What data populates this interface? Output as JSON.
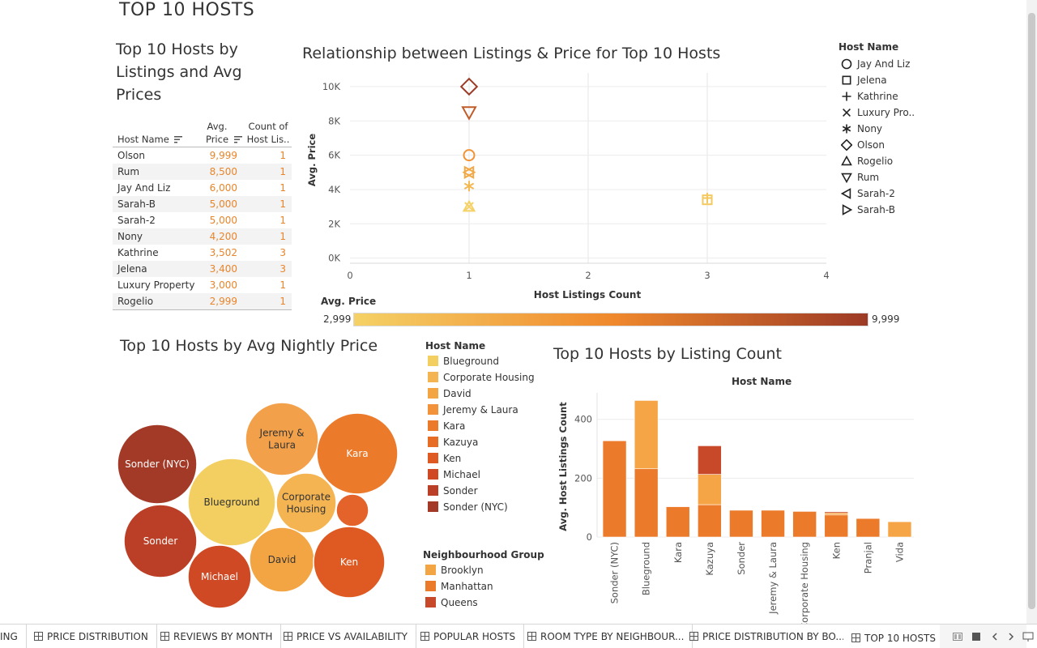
{
  "dashboard": {
    "title": "TOP 10 HOSTS"
  },
  "table_sheet": {
    "title_lines": [
      "Top 10 Hosts by",
      "Listings and Avg",
      "Prices"
    ],
    "headers": {
      "host_name": "Host Name",
      "avg_price_1": "Avg.",
      "avg_price_2": "Price",
      "count_1": "Count of",
      "count_2": "Host Lis.."
    },
    "rows": [
      {
        "name": "Olson",
        "price": "9,999",
        "count": "1"
      },
      {
        "name": "Rum",
        "price": "8,500",
        "count": "1"
      },
      {
        "name": "Jay And Liz",
        "price": "6,000",
        "count": "1"
      },
      {
        "name": "Sarah-B",
        "price": "5,000",
        "count": "1"
      },
      {
        "name": "Sarah-2",
        "price": "5,000",
        "count": "1"
      },
      {
        "name": "Nony",
        "price": "4,200",
        "count": "1"
      },
      {
        "name": "Kathrine",
        "price": "3,502",
        "count": "3"
      },
      {
        "name": "Jelena",
        "price": "3,400",
        "count": "3"
      },
      {
        "name": "Luxury Property",
        "price": "3,000",
        "count": "1"
      },
      {
        "name": "Rogelio",
        "price": "2,999",
        "count": "1"
      }
    ]
  },
  "shape_legend": {
    "title": "Host Name",
    "items": [
      {
        "label": "Jay And Liz",
        "shape": "circle"
      },
      {
        "label": "Jelena",
        "shape": "square"
      },
      {
        "label": "Kathrine",
        "shape": "plus"
      },
      {
        "label": "Luxury Pro..",
        "shape": "cross"
      },
      {
        "label": "Nony",
        "shape": "asterisk"
      },
      {
        "label": "Olson",
        "shape": "diamond"
      },
      {
        "label": "Rogelio",
        "shape": "triangle-up"
      },
      {
        "label": "Rum",
        "shape": "triangle-down"
      },
      {
        "label": "Sarah-2",
        "shape": "triangle-left"
      },
      {
        "label": "Sarah-B",
        "shape": "triangle-right"
      }
    ]
  },
  "color_scale": {
    "title": "Avg. Price",
    "min_label": "2,999",
    "max_label": "9,999",
    "color_low": "#f5d166",
    "color_mid": "#f0892d",
    "color_high": "#9c3a26"
  },
  "bubble_sheet": {
    "title": "Top 10 Hosts by Avg Nightly Price"
  },
  "bubble_legend": {
    "host_title": "Host Name",
    "hosts": [
      {
        "label": "Blueground",
        "color": "#f3cf62"
      },
      {
        "label": "Corporate Housing",
        "color": "#f5b452"
      },
      {
        "label": "David",
        "color": "#f3a443"
      },
      {
        "label": "Jeremy & Laura",
        "color": "#f2923a"
      },
      {
        "label": "Kara",
        "color": "#ec7a2b"
      },
      {
        "label": "Kazuya",
        "color": "#e76c24"
      },
      {
        "label": "Ken",
        "color": "#de5a22"
      },
      {
        "label": "Michael",
        "color": "#cf4a24"
      },
      {
        "label": "Sonder",
        "color": "#bb3f26"
      },
      {
        "label": "Sonder (NYC)",
        "color": "#a33a27"
      }
    ],
    "group_title": "Neighbourhood Group",
    "groups": [
      {
        "label": "Brooklyn",
        "color": "#f3a443"
      },
      {
        "label": "Manhattan",
        "color": "#ec7a2b"
      },
      {
        "label": "Queens",
        "color": "#c8482a"
      }
    ]
  },
  "bar_sheet": {
    "title": "Top 10 Hosts by Listing Count",
    "column_header": "Host Name"
  },
  "tabs": [
    {
      "label": "ING"
    },
    {
      "label": "PRICE DISTRIBUTION"
    },
    {
      "label": "REVIEWS BY MONTH"
    },
    {
      "label": "PRICE VS AVAILABILITY"
    },
    {
      "label": "POPULAR HOSTS"
    },
    {
      "label": "ROOM TYPE BY NEIGHBOUR..."
    },
    {
      "label": "PRICE DISTRIBUTION BY BO..."
    },
    {
      "label": "TOP 10 HOSTS"
    }
  ],
  "chart_data": [
    {
      "type": "scatter",
      "title": "Relationship between Listings & Price for Top 10 Hosts",
      "xlabel": "Host Listings Count",
      "ylabel": "Avg. Price",
      "xlim": [
        0,
        4
      ],
      "ylim": [
        -300,
        10800
      ],
      "x_ticks": [
        "0",
        "1",
        "2",
        "3",
        "4"
      ],
      "y_ticks": [
        "0K",
        "2K",
        "4K",
        "6K",
        "8K",
        "10K"
      ],
      "grid": true,
      "points": [
        {
          "host": "Olson",
          "x": 1,
          "y": 9999,
          "shape": "diamond"
        },
        {
          "host": "Rum",
          "x": 1,
          "y": 8500,
          "shape": "triangle-down"
        },
        {
          "host": "Jay And Liz",
          "x": 1,
          "y": 6000,
          "shape": "circle"
        },
        {
          "host": "Sarah-B",
          "x": 1,
          "y": 5000,
          "shape": "triangle-right"
        },
        {
          "host": "Sarah-2",
          "x": 1,
          "y": 5000,
          "shape": "triangle-left"
        },
        {
          "host": "Nony",
          "x": 1,
          "y": 4200,
          "shape": "asterisk"
        },
        {
          "host": "Kathrine",
          "x": 3,
          "y": 3502,
          "shape": "plus"
        },
        {
          "host": "Jelena",
          "x": 3,
          "y": 3400,
          "shape": "square"
        },
        {
          "host": "Luxury Property",
          "x": 1,
          "y": 3000,
          "shape": "cross"
        },
        {
          "host": "Rogelio",
          "x": 1,
          "y": 2999,
          "shape": "triangle-up"
        }
      ]
    },
    {
      "type": "bubble",
      "title": "Top 10 Hosts by Avg Nightly Price",
      "bubbles": [
        {
          "label": "Sonder (NYC)",
          "color": "#a33a27",
          "text_color": "#ffffff"
        },
        {
          "label": "Blueground",
          "color": "#f3cf62",
          "text_color": "#333333"
        },
        {
          "label": "Jeremy & Laura",
          "color": "#f2a04a",
          "text_color": "#333333"
        },
        {
          "label": "Kara",
          "color": "#ec7a2b",
          "text_color": "#ffffff"
        },
        {
          "label": "Corporate Housing",
          "color": "#f5b452",
          "text_color": "#333333"
        },
        {
          "label": "",
          "color": "#e4632a",
          "text_color": "#ffffff"
        },
        {
          "label": "Sonder",
          "color": "#bb3f26",
          "text_color": "#ffffff"
        },
        {
          "label": "Michael",
          "color": "#cf4a24",
          "text_color": "#ffffff"
        },
        {
          "label": "David",
          "color": "#f3a443",
          "text_color": "#333333"
        },
        {
          "label": "Ken",
          "color": "#de5a22",
          "text_color": "#ffffff"
        }
      ]
    },
    {
      "type": "bar",
      "stacked": true,
      "title": "Top 10 Hosts by Listing Count",
      "ylabel": "Avg. Host Listings Count",
      "ylim": [
        0,
        490
      ],
      "y_ticks": [
        0,
        200,
        400
      ],
      "categories": [
        "Sonder (NYC)",
        "Blueground",
        "Kara",
        "Kazuya",
        "Sonder",
        "Jeremy & Laura",
        "Corporate Housing",
        "Ken",
        "Pranjal",
        "Vida"
      ],
      "series": [
        {
          "name": "Manhattan",
          "color": "#ec7a2b",
          "values": [
            327,
            232,
            103,
            110,
            91,
            91,
            87,
            75,
            63,
            0
          ]
        },
        {
          "name": "Brooklyn",
          "color": "#f5a545",
          "values": [
            0,
            232,
            0,
            103,
            0,
            0,
            0,
            7,
            0,
            52
          ]
        },
        {
          "name": "Queens",
          "color": "#c8482a",
          "values": [
            0,
            0,
            0,
            97,
            0,
            0,
            0,
            4,
            0,
            0
          ]
        }
      ]
    }
  ]
}
